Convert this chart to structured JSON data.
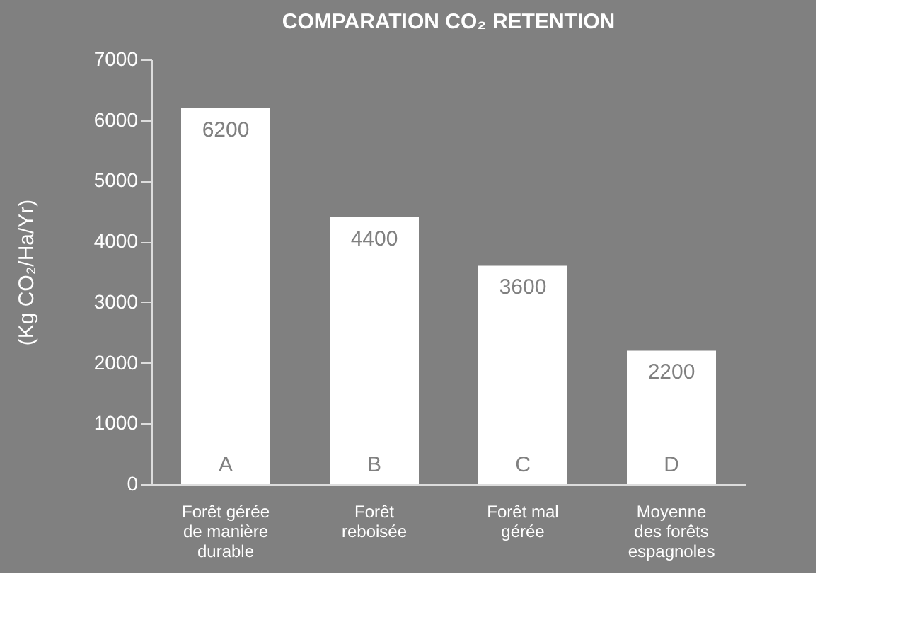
{
  "chart_data": {
    "type": "bar",
    "title": "COMPARATION CO₂ RETENTION",
    "ylabel": "(Kg CO₂/Ha/Yr)",
    "categories": [
      "Forêt gérée\nde manière\ndurable",
      "Forêt\nreboisée",
      "Forêt mal\ngérée",
      "Moyenne\ndes forêts\nespagnoles"
    ],
    "values": [
      6200,
      4400,
      3600,
      2200
    ],
    "color": "#ffffff",
    "ylim": [
      0,
      7000
    ],
    "yticks": [
      0,
      1000,
      2000,
      3000,
      4000,
      5000,
      6000,
      7000
    ],
    "grid": false,
    "data_labels": true,
    "annotations": [
      {
        "text": "A",
        "x": "Forêt gérée\nde manière\ndurable",
        "y": 0
      },
      {
        "text": "B",
        "x": "Forêt\nreboisée",
        "y": 0
      },
      {
        "text": "C",
        "x": "Forêt mal\ngérée",
        "y": 0
      },
      {
        "text": "D",
        "x": "Moyenne\ndes forêts\nespagnoles",
        "y": 0
      }
    ]
  }
}
